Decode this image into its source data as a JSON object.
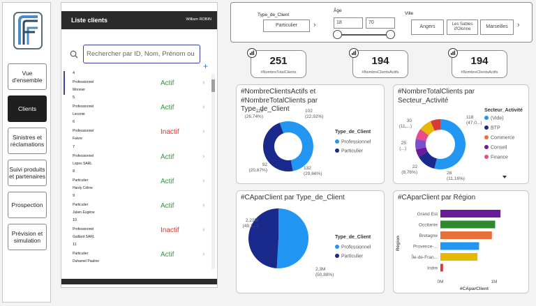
{
  "user": "William ROBIN",
  "nav": {
    "items": [
      {
        "label": "Vue d'ensemble",
        "active": false
      },
      {
        "label": "Clients",
        "active": true
      },
      {
        "label": "Sinistres et réclamations",
        "active": false
      },
      {
        "label": "Suivi produits et partenaires",
        "active": false
      },
      {
        "label": "Prospection",
        "active": false
      },
      {
        "label": "Prévision et simulation",
        "active": false
      }
    ]
  },
  "list": {
    "title": "Liste clients",
    "search_placeholder": "Rechercher par ID, Nom, Prénom ou",
    "rows": [
      {
        "id": "4",
        "type": "Professionnel",
        "name": "Monnier",
        "status": "Actif"
      },
      {
        "id": "5",
        "type": "Professionnel",
        "name": "Leconte",
        "status": "Actif"
      },
      {
        "id": "6",
        "type": "Professionnel",
        "name": "Faivre",
        "status": "Inactif"
      },
      {
        "id": "7",
        "type": "Professionnel",
        "name": "Lopes SARL",
        "status": "Actif"
      },
      {
        "id": "8",
        "type": "Particulier",
        "name": "Hardy Céline",
        "status": "Actif"
      },
      {
        "id": "9",
        "type": "Particulier",
        "name": "Julien Eugène",
        "status": "Actif"
      },
      {
        "id": "10",
        "type": "Professionnel",
        "name": "Gaillard SARL",
        "status": "Inactif"
      },
      {
        "id": "11",
        "type": "Particulier",
        "name": "Duhamel Pauline",
        "status": "Actif"
      }
    ]
  },
  "filters": {
    "type_label": "Type_de_Client",
    "type_value": "Particulier",
    "age_label": "Âge",
    "age_min": "18",
    "age_max": "70",
    "ville_label": "Ville",
    "villes": [
      "Angers",
      "Les Sables d'Olonne",
      "Marseilles"
    ]
  },
  "kpis": [
    {
      "value": "251",
      "label": "#NombreTotalClients"
    },
    {
      "value": "194",
      "label": "#NombreClientsActifs"
    },
    {
      "value": "194",
      "label": "#NombreClientsActifs"
    }
  ],
  "colors": {
    "dark_blue": "#1a2a8c",
    "light_blue": "#2196f3",
    "green_active": "#2c9b3a",
    "red_inactive": "#dd3333"
  },
  "chart_data": [
    {
      "type": "pie",
      "title": "#NombreClientsActifs et #NombreTotalClients par Type_de_Client",
      "legend_title": "Type_de_Client",
      "labels": [
        "Professionnel",
        "Particulier"
      ],
      "colors": [
        "#2196f3",
        "#1a2a8c"
      ],
      "outer_values": [
        102,
        119
      ],
      "outer_labels": [
        "102\n(22,92%)",
        "119\n(26,74%)"
      ],
      "inner_values": [
        132,
        92
      ],
      "inner_labels": [
        "132\n(29,66%)",
        "92\n(20,67%)"
      ],
      "legend_placement": "right"
    },
    {
      "type": "pie",
      "title": "#NombreTotalClients par Secteur_Activité",
      "legend_title": "Secteur_Activité",
      "labels": [
        "(Vide)",
        "BTP",
        "Commerce",
        "Conseil",
        "Finance"
      ],
      "colors": [
        "#2196f3",
        "#1a2a8c",
        "#e8703a",
        "#6a1b9a",
        "#e84a8c"
      ],
      "values": [
        118,
        28,
        22,
        25,
        30
      ],
      "slice_labels": [
        "118\n(47,0...)",
        "28\n(11,16%)",
        "22\n(8,76%)",
        "25\n(...)",
        "30\n(11,...)"
      ],
      "extra_colors": [
        "#e6b800",
        "#7b4fd0",
        "#d63a3a"
      ],
      "legend_placement": "right"
    },
    {
      "type": "pie",
      "title": "#CAparClient par Type_de_Client",
      "legend_title": "Type_de_Client",
      "labels": [
        "Professionnel",
        "Particulier"
      ],
      "colors": [
        "#2196f3",
        "#1a2a8c"
      ],
      "values": [
        2.3,
        2.22
      ],
      "slice_labels": [
        "2,3M\n(50,88%)",
        "2,22M\n(49,1...)"
      ],
      "legend_placement": "right"
    },
    {
      "type": "bar",
      "orientation": "horizontal",
      "title": "#CAparClient par Région",
      "ylabel": "Région",
      "xlabel": "#CAparClient",
      "categories": [
        "Grand Est",
        "Occitanie",
        "Bretagne",
        "Provence-...",
        "Île-de-Fran...",
        "Indre"
      ],
      "values": [
        1.12,
        1.02,
        0.96,
        0.72,
        0.69,
        0.05
      ],
      "colors": [
        "#6a1b9a",
        "#2c8a2c",
        "#e8703a",
        "#2196f3",
        "#e6b800",
        "#d63a3a"
      ],
      "xticks": [
        "0M",
        "1M"
      ],
      "xlim": [
        0,
        1.3
      ]
    }
  ]
}
